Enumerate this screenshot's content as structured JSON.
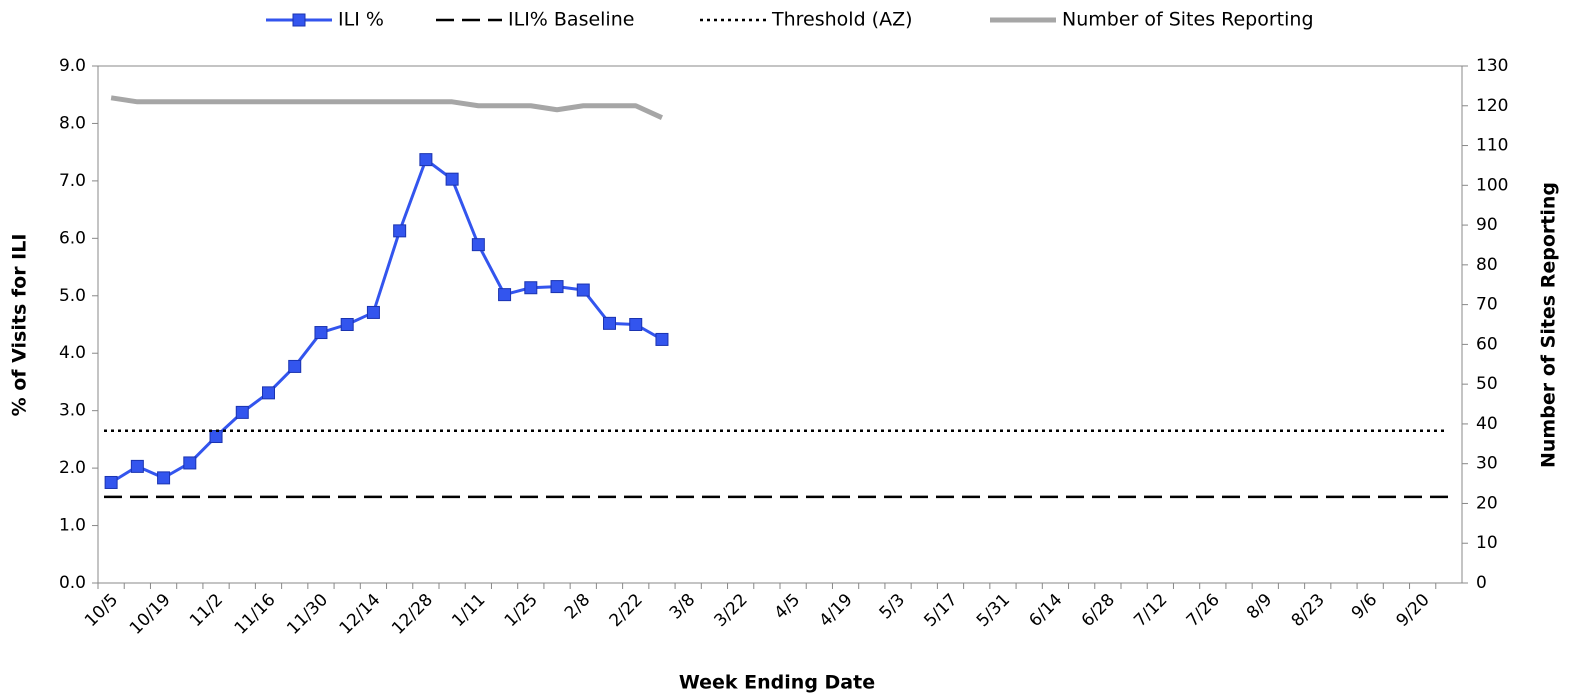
{
  "chart_data": {
    "type": "line",
    "x_label": "Week Ending Date",
    "y_label": "% of Visits for ILI",
    "y2_label": "Number of Sites Reporting",
    "categories": [
      "10/5",
      null,
      "10/19",
      null,
      "11/2",
      null,
      "11/16",
      null,
      "11/30",
      null,
      "12/14",
      null,
      "12/28",
      null,
      "1/11",
      null,
      "1/25",
      null,
      "2/8",
      null,
      "2/22",
      null,
      "3/8",
      null,
      "3/22",
      null,
      "4/5",
      null,
      "4/19",
      null,
      "5/3",
      null,
      "5/17",
      null,
      "5/31",
      null,
      "6/14",
      null,
      "6/28",
      null,
      "7/12",
      null,
      "7/26",
      null,
      "8/9",
      null,
      "8/23",
      null,
      "9/6",
      null,
      "9/20",
      null
    ],
    "ylim": [
      0,
      9
    ],
    "yticks": [
      {
        "value": 0,
        "label": "0.0"
      },
      {
        "value": 1,
        "label": "1.0"
      },
      {
        "value": 2,
        "label": "2.0"
      },
      {
        "value": 3,
        "label": "3.0"
      },
      {
        "value": 4,
        "label": "4.0"
      },
      {
        "value": 5,
        "label": "5.0"
      },
      {
        "value": 6,
        "label": "6.0"
      },
      {
        "value": 7,
        "label": "7.0"
      },
      {
        "value": 8,
        "label": "8.0"
      },
      {
        "value": 9,
        "label": "9.0"
      }
    ],
    "y2lim": [
      0,
      130
    ],
    "y2ticks": [
      0,
      10,
      20,
      30,
      40,
      50,
      60,
      70,
      80,
      90,
      100,
      110,
      120,
      130
    ],
    "grid": false,
    "legend": "top",
    "series": [
      {
        "name": "ILI %",
        "color": "#3355ee",
        "marker": "square",
        "values": [
          1.75,
          2.03,
          1.83,
          2.09,
          2.55,
          2.97,
          3.31,
          3.77,
          4.36,
          4.5,
          4.71,
          6.13,
          7.37,
          7.03,
          5.89,
          5.02,
          5.14,
          5.16,
          5.1,
          4.52,
          4.5,
          4.24,
          null,
          null,
          null,
          null,
          null,
          null,
          null,
          null,
          null,
          null,
          null,
          null,
          null,
          null,
          null,
          null,
          null,
          null,
          null,
          null,
          null,
          null,
          null,
          null,
          null,
          null,
          null,
          null,
          null,
          null
        ]
      },
      {
        "name": "ILI% Baseline",
        "color": "#000000",
        "style": "dashed",
        "value": 1.5
      },
      {
        "name": "Threshold (AZ)",
        "color": "#000000",
        "style": "dotted",
        "value": 2.65
      },
      {
        "name": "Number of Sites Reporting",
        "color": "#a6a6a6",
        "axis": "y2",
        "values": [
          122,
          121,
          121,
          121,
          121,
          121,
          121,
          121,
          121,
          121,
          121,
          121,
          121,
          121,
          120,
          120,
          120,
          119,
          120,
          120,
          120,
          117,
          null,
          null,
          null,
          null,
          null,
          null,
          null,
          null,
          null,
          null,
          null,
          null,
          null,
          null,
          null,
          null,
          null,
          null,
          null,
          null,
          null,
          null,
          null,
          null,
          null,
          null,
          null,
          null,
          null,
          null
        ]
      }
    ]
  }
}
